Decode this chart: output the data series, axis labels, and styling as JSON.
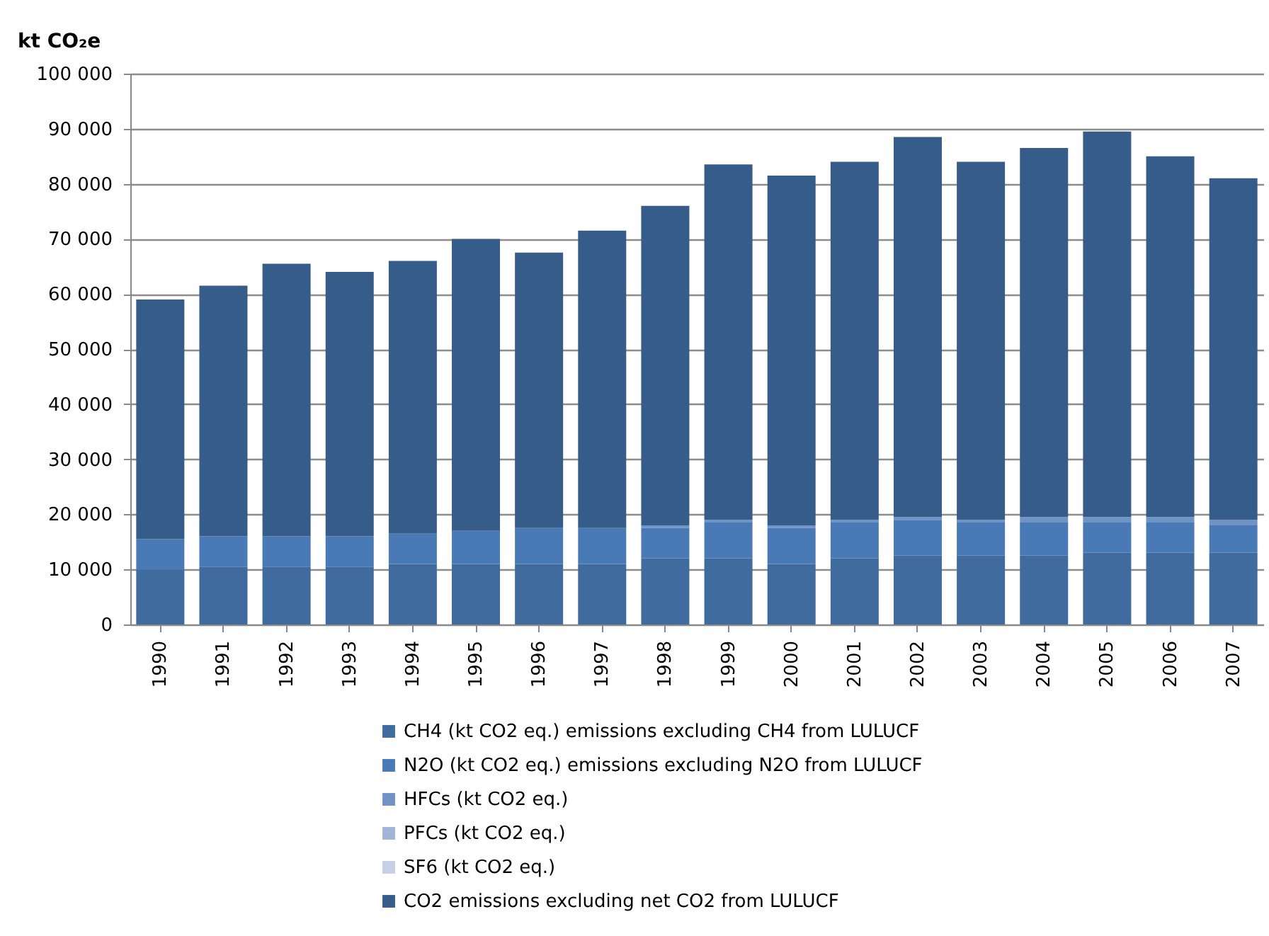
{
  "chart_data": {
    "type": "bar",
    "stacked": true,
    "ylabel": "kt CO₂e",
    "legend": "bottom",
    "grid": "y",
    "categories": [
      "1990",
      "1991",
      "1992",
      "1993",
      "1994",
      "1995",
      "1996",
      "1997",
      "1998",
      "1999",
      "2000",
      "2001",
      "2002",
      "2003",
      "2004",
      "2005",
      "2006",
      "2007"
    ],
    "ylim": [
      0,
      100000
    ],
    "yticks": [
      0,
      {
        "value": 10000,
        "label": "10 000"
      },
      {
        "value": 20000,
        "label": "20 000"
      },
      {
        "value": 30000,
        "label": "30 000"
      },
      {
        "value": 40000,
        "label": "40 000"
      },
      {
        "value": 50000,
        "label": "50 000"
      },
      {
        "value": 60000,
        "label": "60 000"
      },
      {
        "value": 70000,
        "label": "70 000"
      },
      {
        "value": 80000,
        "label": "80 000"
      },
      {
        "value": 90000,
        "label": "90 000"
      },
      {
        "value": 100000,
        "label": "100 000"
      }
    ],
    "series": [
      {
        "name": "CH4 (kt CO2 eq.) emissions excluding  CH4 from LULUCF",
        "color": "#3f6b9e",
        "values": [
          10000,
          10500,
          10500,
          10500,
          11000,
          11000,
          11000,
          11000,
          12000,
          12000,
          11000,
          12000,
          12500,
          12500,
          12500,
          13000,
          13000,
          13000
        ]
      },
      {
        "name": "N2O (kt CO2 eq.) emissions excluding  N2O from LULUCF",
        "color": "#4a7ab5",
        "values": [
          5500,
          5500,
          5500,
          5500,
          5500,
          6000,
          6500,
          6500,
          5500,
          6500,
          6500,
          6500,
          6500,
          6000,
          6000,
          5500,
          5500,
          5000
        ]
      },
      {
        "name": "HFCs (kt CO2 eq.)",
        "color": "#7093c6",
        "values": [
          0,
          0,
          0,
          0,
          0,
          0,
          0,
          0,
          500,
          500,
          500,
          500,
          500,
          500,
          1000,
          1000,
          1000,
          1000
        ]
      },
      {
        "name": "PFCs (kt CO2 eq.)",
        "color": "#a2b5d8",
        "values": [
          0,
          0,
          0,
          0,
          0,
          0,
          0,
          0,
          0,
          0,
          0,
          0,
          0,
          0,
          0,
          0,
          0,
          0
        ]
      },
      {
        "name": "SF6 (kt CO2 eq.)",
        "color": "#c5cfe6",
        "values": [
          0,
          0,
          0,
          0,
          0,
          0,
          0,
          0,
          0,
          0,
          0,
          0,
          0,
          0,
          0,
          0,
          0,
          0
        ]
      },
      {
        "name": "CO2 emissions excluding  net CO2 from LULUCF",
        "color": "#365c8a",
        "values": [
          43500,
          45500,
          49500,
          48000,
          49500,
          53000,
          50000,
          54000,
          58000,
          64500,
          63500,
          65000,
          69000,
          65000,
          67000,
          70000,
          65500,
          62000
        ]
      }
    ]
  }
}
